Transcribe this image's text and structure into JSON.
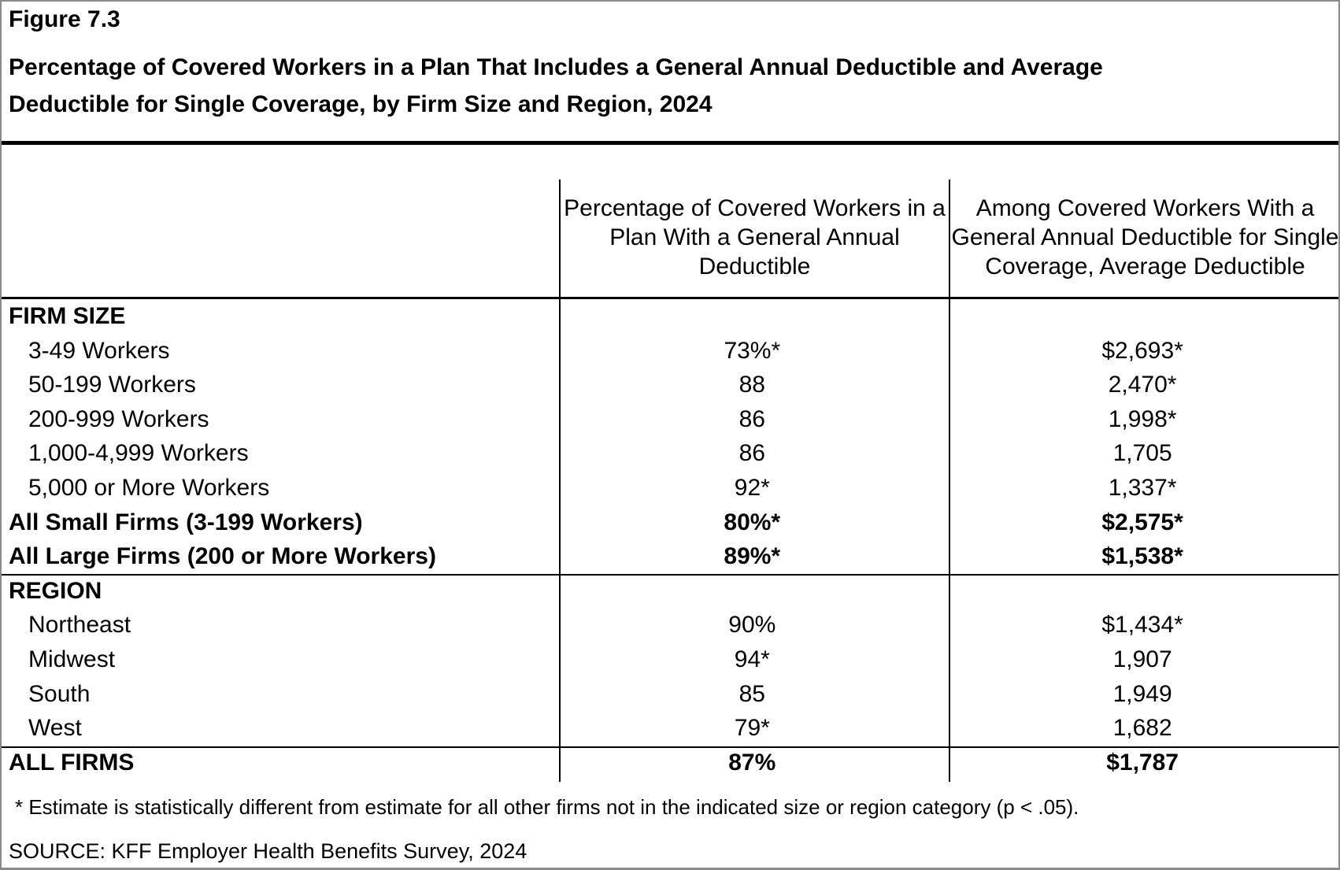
{
  "header": {
    "figure_label": "Figure 7.3",
    "title_line1": "Percentage of Covered Workers in a Plan That Includes a General Annual Deductible and Average",
    "title_line2": "Deductible for Single Coverage, by Firm Size and Region, 2024"
  },
  "table": {
    "header": {
      "col2_lines": [
        "Percentage of Covered Workers in a",
        "Plan With a General Annual",
        "Deductible"
      ],
      "col3_lines": [
        "Among Covered Workers With a",
        "General Annual Deductible for Single",
        "Coverage, Average Deductible"
      ]
    },
    "rows": [
      {
        "label": "FIRM SIZE",
        "pct": "",
        "ded": "",
        "style": "section"
      },
      {
        "label": "3-49 Workers",
        "pct": "73%*",
        "ded": "$2,693*",
        "style": "item"
      },
      {
        "label": "50-199 Workers",
        "pct": "88",
        "ded": "2,470*",
        "style": "item"
      },
      {
        "label": "200-999 Workers",
        "pct": "86",
        "ded": "1,998*",
        "style": "item"
      },
      {
        "label": "1,000-4,999 Workers",
        "pct": "86",
        "ded": "1,705",
        "style": "item"
      },
      {
        "label": "5,000 or More Workers",
        "pct": "92*",
        "ded": "1,337*",
        "style": "item"
      },
      {
        "label": "All Small Firms (3-199 Workers)",
        "pct": "80%*",
        "ded": "$2,575*",
        "style": "summary"
      },
      {
        "label": "All Large Firms (200 or More Workers)",
        "pct": "89%*",
        "ded": "$1,538*",
        "style": "summary"
      },
      {
        "label": "REGION",
        "pct": "",
        "ded": "",
        "style": "section"
      },
      {
        "label": "Northeast",
        "pct": "90%",
        "ded": "$1,434*",
        "style": "item"
      },
      {
        "label": "Midwest",
        "pct": "94*",
        "ded": "1,907",
        "style": "item"
      },
      {
        "label": "South",
        "pct": "85",
        "ded": "1,949",
        "style": "item"
      },
      {
        "label": "West",
        "pct": "79*",
        "ded": "1,682",
        "style": "item"
      },
      {
        "label": "ALL FIRMS",
        "pct": "87%",
        "ded": "$1,787",
        "style": "summary"
      }
    ]
  },
  "footer": {
    "footnote": "* Estimate is statistically different from estimate for all other firms not in the indicated size or region category (p < .05).",
    "source": "SOURCE: KFF Employer Health Benefits Survey, 2024"
  },
  "chart_data": {
    "type": "table",
    "title": "Percentage of Covered Workers in a Plan That Includes a General Annual Deductible and Average Deductible for Single Coverage, by Firm Size and Region, 2024",
    "categories": [
      "3-49 Workers",
      "50-199 Workers",
      "200-999 Workers",
      "1,000-4,999 Workers",
      "5,000 or More Workers",
      "All Small Firms (3-199 Workers)",
      "All Large Firms (200 or More Workers)",
      "Northeast",
      "Midwest",
      "South",
      "West",
      "ALL FIRMS"
    ],
    "series": [
      {
        "name": "Percentage of Covered Workers in a Plan With a General Annual Deductible (%)",
        "values": [
          73,
          88,
          86,
          86,
          92,
          80,
          89,
          90,
          94,
          85,
          79,
          87
        ],
        "statistically_different": [
          true,
          false,
          false,
          false,
          true,
          true,
          true,
          false,
          true,
          false,
          true,
          false
        ]
      },
      {
        "name": "Among Covered Workers With a General Annual Deductible for Single Coverage, Average Deductible ($)",
        "values": [
          2693,
          2470,
          1998,
          1705,
          1337,
          2575,
          1538,
          1434,
          1907,
          1949,
          1682,
          1787
        ],
        "statistically_different": [
          true,
          true,
          true,
          false,
          true,
          true,
          true,
          true,
          false,
          false,
          false,
          false
        ]
      }
    ],
    "groups": [
      "FIRM SIZE",
      "REGION"
    ]
  }
}
